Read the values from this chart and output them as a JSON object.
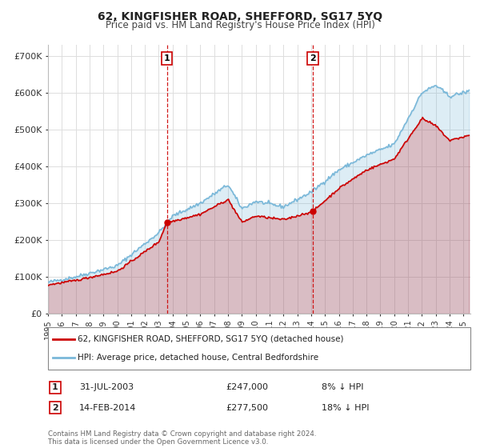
{
  "title": "62, KINGFISHER ROAD, SHEFFORD, SG17 5YQ",
  "subtitle": "Price paid vs. HM Land Registry's House Price Index (HPI)",
  "legend_line1": "62, KINGFISHER ROAD, SHEFFORD, SG17 5YQ (detached house)",
  "legend_line2": "HPI: Average price, detached house, Central Bedfordshire",
  "annotation1_label": "1",
  "annotation1_date": "31-JUL-2003",
  "annotation1_price": "£247,000",
  "annotation1_hpi": "8% ↓ HPI",
  "annotation2_label": "2",
  "annotation2_date": "14-FEB-2014",
  "annotation2_price": "£277,500",
  "annotation2_hpi": "18% ↓ HPI",
  "footer": "Contains HM Land Registry data © Crown copyright and database right 2024.\nThis data is licensed under the Open Government Licence v3.0.",
  "sale1_x": 2003.58,
  "sale1_y": 247000,
  "sale2_x": 2014.12,
  "sale2_y": 277500,
  "hpi_color": "#7ab8d9",
  "price_color": "#cc0000",
  "vline_color": "#cc0000",
  "background_color": "#ffffff",
  "grid_color": "#dddddd",
  "ylim": [
    0,
    730000
  ],
  "xlim_start": 1995,
  "xlim_end": 2025.5,
  "yticks": [
    0,
    100000,
    200000,
    300000,
    400000,
    500000,
    600000,
    700000
  ],
  "ytick_labels": [
    "£0",
    "£100K",
    "£200K",
    "£300K",
    "£400K",
    "£500K",
    "£600K",
    "£700K"
  ]
}
